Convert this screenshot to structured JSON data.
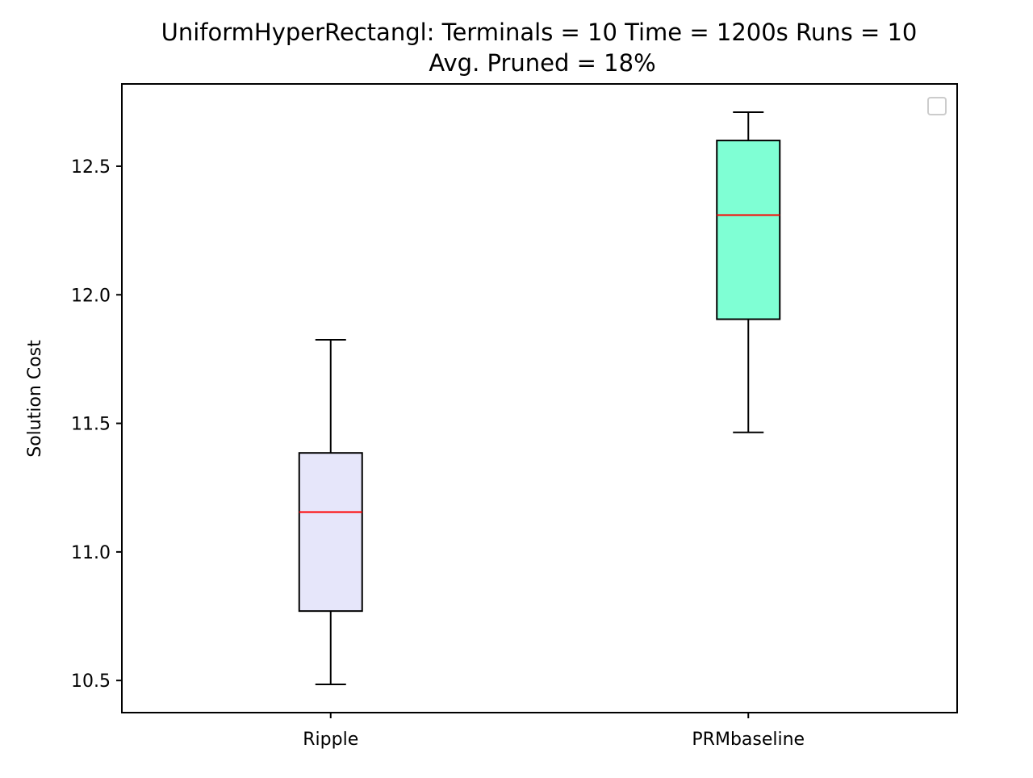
{
  "chart_data": {
    "type": "box",
    "title_lines": [
      "UniformHyperRectangl:  Terminals = 10  Time = 1200s  Runs = 10",
      "Avg. Pruned = 18%"
    ],
    "xlabel": "",
    "ylabel": "Solution Cost",
    "categories": [
      "Ripple",
      "PRMbaseline"
    ],
    "ylim": [
      10.375,
      12.82
    ],
    "yticks": [
      10.5,
      11.0,
      11.5,
      12.0,
      12.5
    ],
    "ytick_labels": [
      "10.5",
      "11.0",
      "11.5",
      "12.0",
      "12.5"
    ],
    "boxes": [
      {
        "category": "Ripple",
        "whisker_low": 10.485,
        "q1": 10.77,
        "median": 11.155,
        "q3": 11.385,
        "whisker_high": 11.825,
        "fill": "#e6e6fa"
      },
      {
        "category": "PRMbaseline",
        "whisker_low": 11.465,
        "q1": 11.905,
        "median": 12.31,
        "q3": 12.6,
        "whisker_high": 12.71,
        "fill": "#7fffd4"
      }
    ],
    "median_color": "#ff0000",
    "legend": {
      "placement": "upper right",
      "entries": []
    },
    "grid": false
  }
}
